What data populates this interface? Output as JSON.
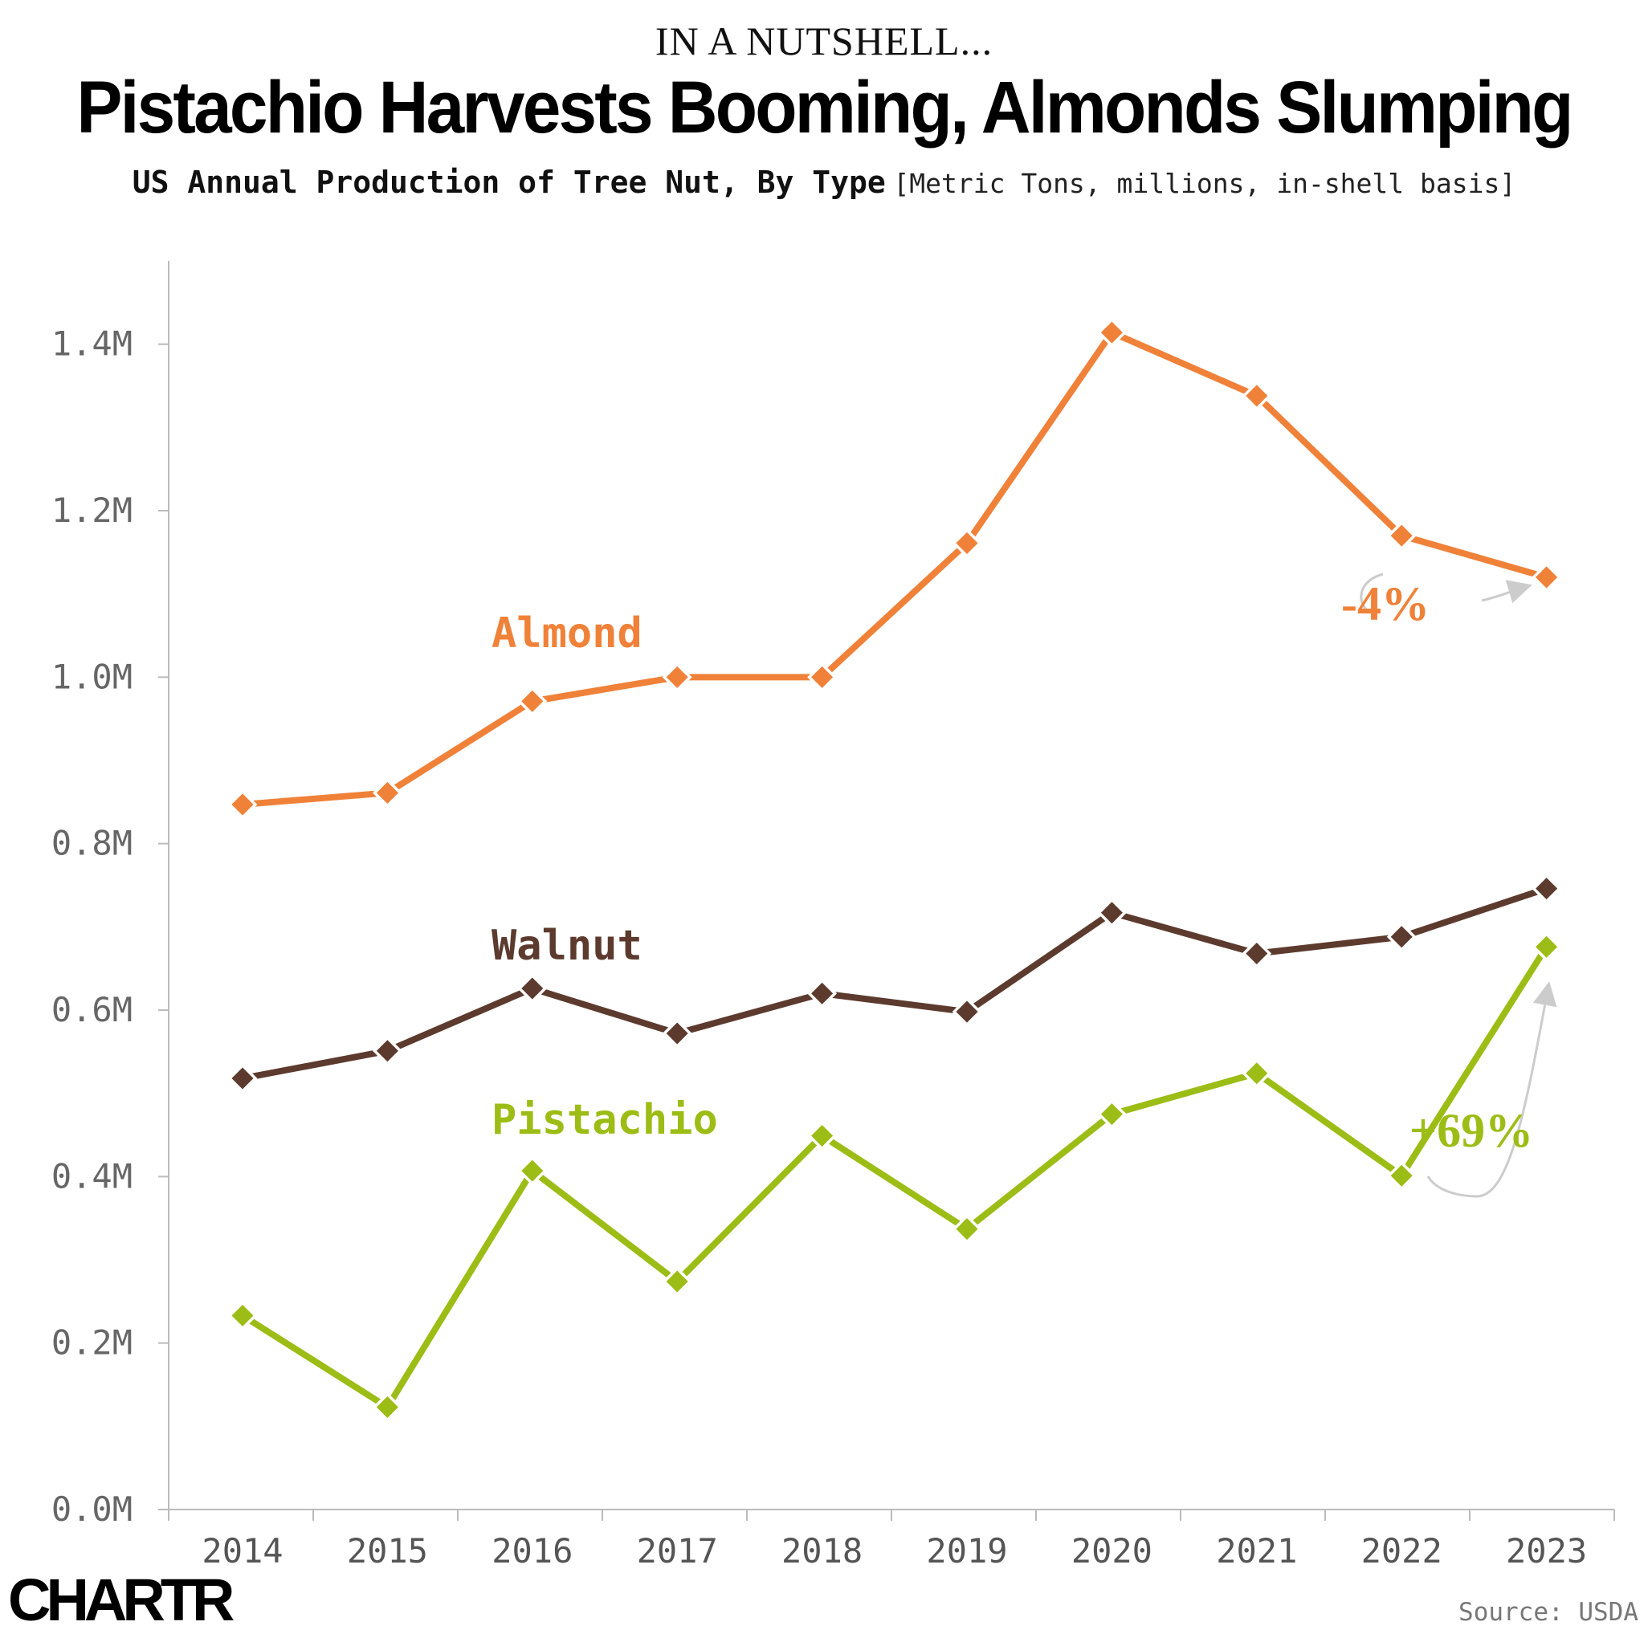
{
  "header": {
    "kicker": "IN A NUTSHELL...",
    "title": "Pistachio Harvests Booming, Almonds Slumping",
    "subtitle": "US Annual Production of Tree Nut, By Type",
    "units": "[Metric Tons, millions, in-shell basis]"
  },
  "footer": {
    "logo": "CHARTR",
    "source": "Source: USDA"
  },
  "chart_data": {
    "type": "line",
    "title": "Pistachio Harvests Booming, Almonds Slumping",
    "subtitle": "US Annual Production of Tree Nut, By Type",
    "ylabel": "",
    "xlabel": "",
    "x": [
      "2014",
      "2015",
      "2016",
      "2017",
      "2018",
      "2019",
      "2020",
      "2021",
      "2022",
      "2023"
    ],
    "ylim": [
      0,
      1.5
    ],
    "yticks": [
      0,
      0.2,
      0.4,
      0.6,
      0.8,
      1.0,
      1.2,
      1.4
    ],
    "ytick_labels": [
      "0.0M",
      "0.2M",
      "0.4M",
      "0.6M",
      "0.8M",
      "1.0M",
      "1.2M",
      "1.4M"
    ],
    "grid": false,
    "series": [
      {
        "name": "Almond",
        "color": "#f08138",
        "values": [
          0.847,
          0.861,
          0.971,
          1.0,
          1.0,
          1.161,
          1.414,
          1.338,
          1.17,
          1.12
        ]
      },
      {
        "name": "Walnut",
        "color": "#5c3b2e",
        "values": [
          0.518,
          0.551,
          0.626,
          0.572,
          0.62,
          0.598,
          0.717,
          0.668,
          0.688,
          0.746
        ]
      },
      {
        "name": "Pistachio",
        "color": "#9cbd15",
        "values": [
          0.233,
          0.123,
          0.407,
          0.274,
          0.449,
          0.337,
          0.475,
          0.524,
          0.401,
          0.676
        ]
      }
    ],
    "annotations": [
      {
        "series": "Almond",
        "text": "-4%",
        "color": "#f08138"
      },
      {
        "series": "Pistachio",
        "text": "+69%",
        "color": "#9cbd15"
      }
    ],
    "annotation_arrow_color": "#cccccc"
  }
}
